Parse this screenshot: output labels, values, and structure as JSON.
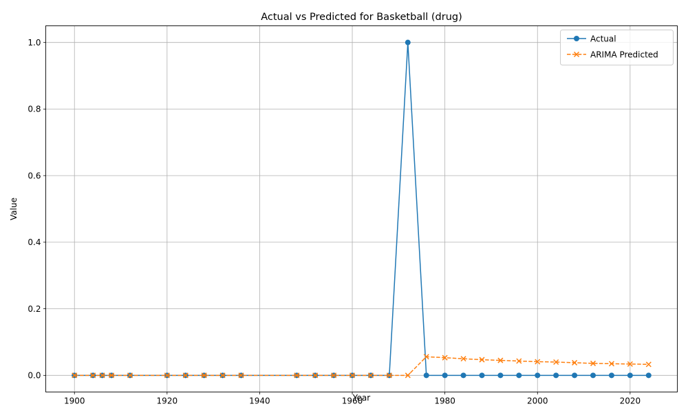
{
  "chart_data": {
    "type": "line",
    "title": "Actual vs Predicted for Basketball (drug)",
    "xlabel": "Year",
    "ylabel": "Value",
    "xlim": [
      1893.8,
      2030.2
    ],
    "ylim": [
      -0.05,
      1.05
    ],
    "x_ticks": [
      1900,
      1920,
      1940,
      1960,
      1980,
      2000,
      2020
    ],
    "y_ticks": [
      0.0,
      0.2,
      0.4,
      0.6,
      0.8,
      1.0
    ],
    "y_tick_labels": [
      "0.0",
      "0.2",
      "0.4",
      "0.6",
      "0.8",
      "1.0"
    ],
    "grid": true,
    "legend_position": "top-right",
    "x": [
      1900,
      1904,
      1906,
      1908,
      1912,
      1920,
      1924,
      1928,
      1932,
      1936,
      1948,
      1952,
      1956,
      1960,
      1964,
      1968,
      1972,
      1976,
      1980,
      1984,
      1988,
      1992,
      1996,
      2000,
      2004,
      2008,
      2012,
      2016,
      2020,
      2024
    ],
    "series": [
      {
        "name": "Actual",
        "color": "#1f77b4",
        "style": "solid",
        "marker": "circle",
        "values": [
          0,
          0,
          0,
          0,
          0,
          0,
          0,
          0,
          0,
          0,
          0,
          0,
          0,
          0,
          0,
          0,
          1.0,
          0,
          0,
          0,
          0,
          0,
          0,
          0,
          0,
          0,
          0,
          0,
          0,
          0
        ]
      },
      {
        "name": "ARIMA Predicted",
        "color": "#ff7f0e",
        "style": "dashed",
        "marker": "x",
        "values": [
          0,
          0,
          0,
          0,
          0,
          0,
          0,
          0,
          0,
          0,
          0,
          0,
          0,
          0,
          0,
          0,
          0,
          0.056,
          0.053,
          0.05,
          0.047,
          0.045,
          0.043,
          0.041,
          0.04,
          0.038,
          0.036,
          0.035,
          0.034,
          0.033
        ]
      }
    ]
  }
}
